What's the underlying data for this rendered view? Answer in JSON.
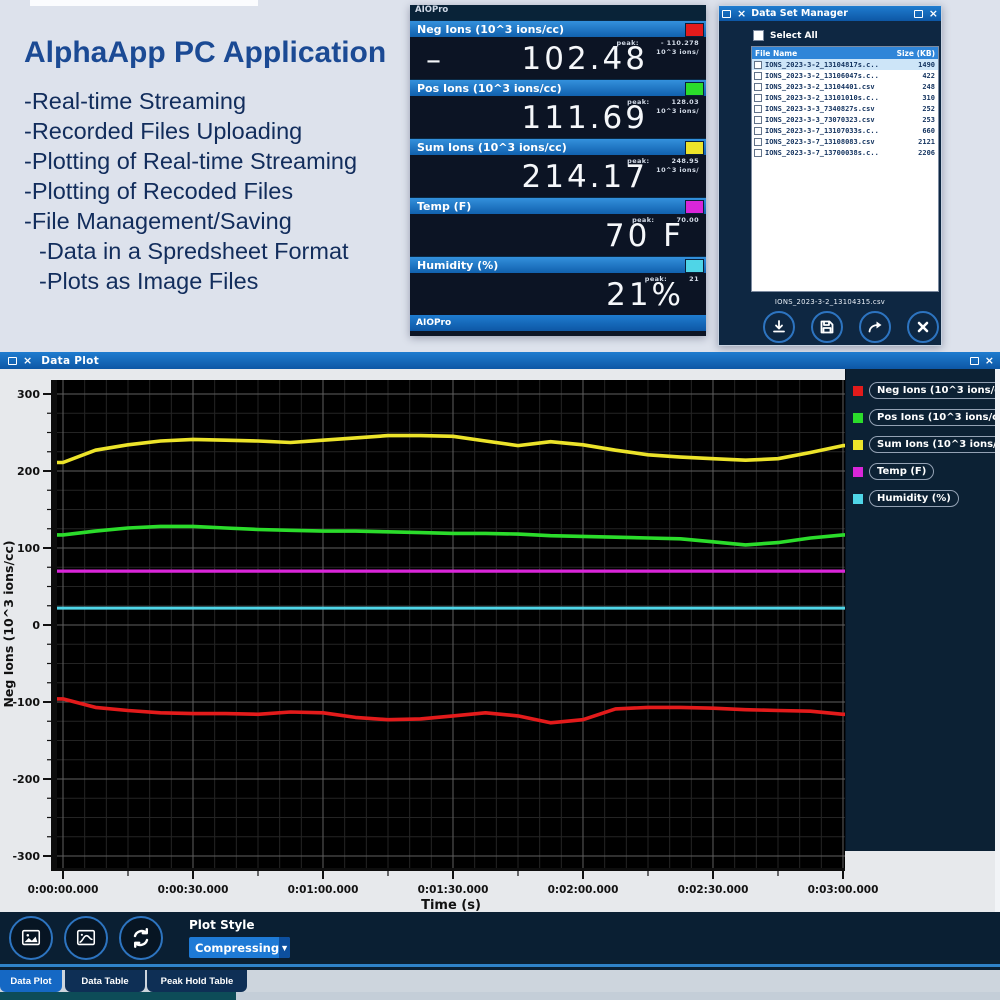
{
  "feature_panel": {
    "title": "AlphaApp PC Application",
    "items": [
      {
        "label": "-Real-time Streaming",
        "indent": 0
      },
      {
        "label": "-Recorded Files Uploading",
        "indent": 0
      },
      {
        "label": "-Plotting of Real-time Streaming",
        "indent": 0
      },
      {
        "label": "-Plotting of Recoded Files",
        "indent": 0
      },
      {
        "label": "-File Management/Saving",
        "indent": 0
      },
      {
        "label": "-Data in a Spredsheet Format",
        "indent": 1
      },
      {
        "label": "-Plots as Image Files",
        "indent": 1
      }
    ]
  },
  "meter": {
    "title": "AIOPro",
    "footer": "AIOPro",
    "channels": [
      {
        "label": "Neg Ions (10^3 ions/cc)",
        "swatch": "#e31b1b",
        "peak_label": "peak:",
        "peak": "- 110.278",
        "peak_unit": "10^3 ions/",
        "value_prefix": "–",
        "value": "102.48"
      },
      {
        "label": "Pos Ions (10^3 ions/cc)",
        "swatch": "#2bdc2b",
        "peak_label": "peak:",
        "peak": "128.03",
        "peak_unit": "10^3 ions/",
        "value": "111.69"
      },
      {
        "label": "Sum Ions (10^3 ions/cc)",
        "swatch": "#ece32a",
        "peak_label": "peak:",
        "peak": "248.95",
        "peak_unit": "10^3 ions/",
        "value": "214.17"
      },
      {
        "label": "Temp (F)",
        "swatch": "#d926d9",
        "peak_label": "peak:",
        "peak": "70.00",
        "value": "70 F"
      },
      {
        "label": "Humidity (%)",
        "swatch": "#4fd5e7",
        "peak_label": "peak:",
        "peak": "21",
        "value": "21%"
      }
    ]
  },
  "dsm": {
    "title": "Data Set Manager",
    "select_all": "Select All",
    "columns": [
      "File Name",
      "Size (KB)"
    ],
    "files": [
      {
        "name": "IONS_2023-3-2_13104817s.c..",
        "size": "1490",
        "selected": true
      },
      {
        "name": "IONS_2023-3-2_13106047s.c..",
        "size": "422",
        "selected": false
      },
      {
        "name": "IONS_2023-3-2_13104401.csv",
        "size": "248",
        "selected": false
      },
      {
        "name": "IONS_2023-3-2_13101010s.c..",
        "size": "310",
        "selected": false
      },
      {
        "name": "IONS_2023-3-3_7340827s.csv",
        "size": "252",
        "selected": false
      },
      {
        "name": "IONS_2023-3-3_73070323.csv",
        "size": "253",
        "selected": false
      },
      {
        "name": "IONS_2023-3-7_13107033s.c..",
        "size": "660",
        "selected": false
      },
      {
        "name": "IONS_2023-3-7_13108083.csv",
        "size": "2121",
        "selected": false
      },
      {
        "name": "IONS_2023-3-7_13700038s.c..",
        "size": "2206",
        "selected": false
      }
    ],
    "selected_file": "IONS_2023-3-2_13104315.csv",
    "buttons": [
      "download",
      "save",
      "export",
      "close"
    ]
  },
  "plot_window": {
    "title": "Data Plot"
  },
  "chart_data": {
    "type": "line",
    "title": "",
    "xlabel": "Time (s)",
    "ylabel": "Neg Ions (10^3 ions/cc)",
    "grid": {
      "major": true,
      "minor": true
    },
    "legend_position": "right",
    "plot_background": "#000000",
    "ylim": [
      -318,
      318
    ],
    "y_ticks": [
      300,
      200,
      100,
      0,
      -100,
      -200,
      -300
    ],
    "x_ticks_seconds": [
      0,
      30,
      60,
      90,
      120,
      150,
      180
    ],
    "x_tick_labels": [
      "0:00:00.000",
      "0:00:30.000",
      "0:01:00.000",
      "0:01:30.000",
      "0:02:00.000",
      "0:02:30.000",
      "0:03:00.000"
    ],
    "x_seconds": [
      0,
      7.5,
      15,
      22.5,
      30,
      37.5,
      45,
      52.5,
      60,
      67.5,
      75,
      82.5,
      90,
      97.5,
      105,
      112.5,
      120,
      127.5,
      135,
      142.5,
      150,
      157.5,
      165,
      172.5,
      180
    ],
    "series": [
      {
        "name": "Neg Ions (10^3 ions/cc)",
        "color": "#e31b1b",
        "width": 3.6,
        "values": [
          -96,
          -107,
          -111,
          -114,
          -115,
          -115,
          -116,
          -113,
          -114,
          -120,
          -123,
          -122,
          -118,
          -114,
          -118,
          -127,
          -123,
          -109,
          -107,
          -107,
          -108,
          -110,
          -111,
          -112,
          -116
        ]
      },
      {
        "name": "Pos Ions (10^3 ions/cc)",
        "color": "#2bdc2b",
        "width": 3.6,
        "values": [
          117,
          122,
          126,
          128,
          128,
          126,
          124,
          123,
          122,
          122,
          121,
          120,
          119,
          119,
          118,
          116,
          115,
          114,
          113,
          112,
          108,
          104,
          107,
          113,
          117
        ]
      },
      {
        "name": "Sum Ions (10^3 ions/cc)",
        "color": "#ece32a",
        "width": 3.6,
        "values": [
          211,
          227,
          234,
          239,
          241,
          240,
          239,
          237,
          240,
          243,
          246,
          246,
          245,
          239,
          233,
          238,
          234,
          227,
          221,
          218,
          216,
          214,
          216,
          224,
          233
        ]
      },
      {
        "name": "Temp (F)",
        "color": "#d926d9",
        "width": 3.2,
        "values": [
          70,
          70,
          70,
          70,
          70,
          70,
          70,
          70,
          70,
          70,
          70,
          70,
          70,
          70,
          70,
          70,
          70,
          70,
          70,
          70,
          70,
          70,
          70,
          70,
          70
        ]
      },
      {
        "name": "Humidity (%)",
        "color": "#4fd5e7",
        "width": 3.0,
        "values": [
          22,
          22,
          22,
          22,
          22,
          22,
          22,
          22,
          22,
          22,
          22,
          22,
          22,
          22,
          22,
          22,
          22,
          22,
          22,
          22,
          22,
          22,
          22,
          22,
          22
        ]
      }
    ]
  },
  "toolbar": {
    "plot_style_label": "Plot Style",
    "plot_style_value": "Compressing",
    "buttons": [
      "export-image",
      "export-image-2",
      "refresh"
    ]
  },
  "tabs": [
    {
      "label": "Data Plot",
      "active": true
    },
    {
      "label": "Data Table",
      "active": false
    },
    {
      "label": "Peak Hold Table",
      "active": false
    }
  ]
}
